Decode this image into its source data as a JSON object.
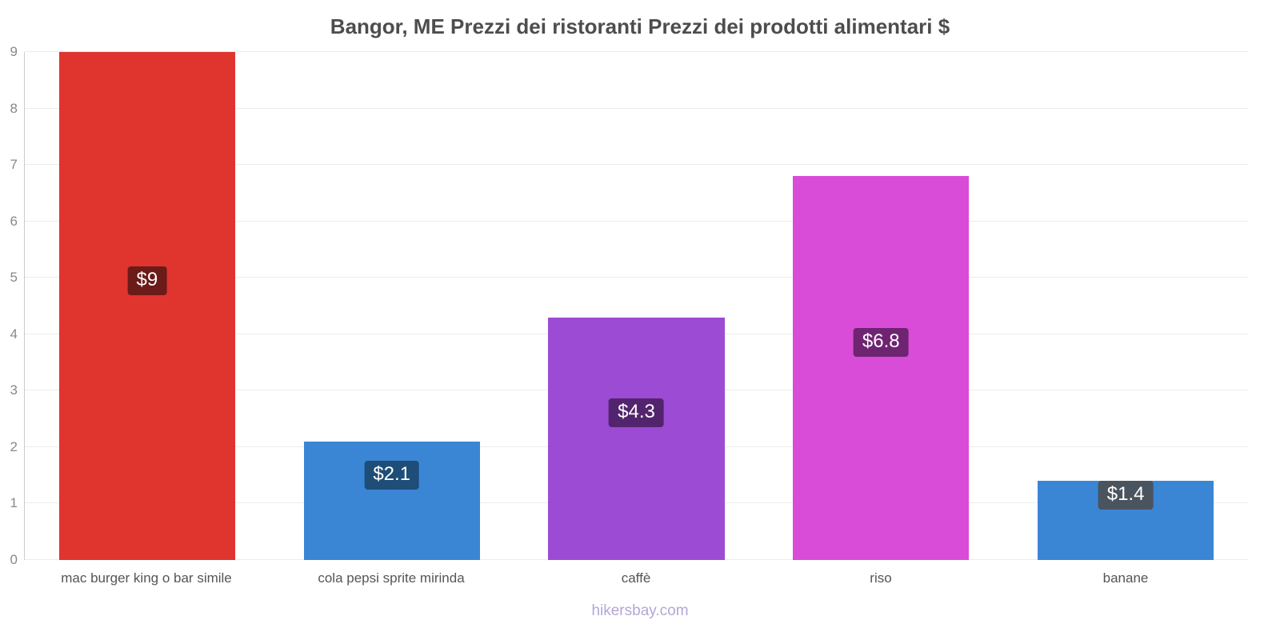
{
  "title": "Bangor, ME Prezzi dei ristoranti Prezzi dei prodotti alimentari $",
  "footer": "hikersbay.com",
  "chart_data": {
    "type": "bar",
    "title": "Bangor, ME Prezzi dei ristoranti Prezzi dei prodotti alimentari $",
    "categories": [
      "mac burger king o bar simile",
      "cola pepsi sprite mirinda",
      "caffè",
      "riso",
      "banane"
    ],
    "values": [
      9,
      2.1,
      4.3,
      6.8,
      1.4
    ],
    "value_labels": [
      "$9",
      "$2.1",
      "$4.3",
      "$6.8",
      "$1.4"
    ],
    "bar_colors": [
      "#e0342f",
      "#3b85d5",
      "#9c4bd4",
      "#d84cd8",
      "#3b85d5"
    ],
    "label_bg_colors": [
      "#6b1b18",
      "#1e4d78",
      "#53246e",
      "#6f2472",
      "#4a545e"
    ],
    "currency": "$",
    "xlabel": "",
    "ylabel": "",
    "ylim": [
      0,
      9
    ],
    "yticks": [
      0,
      1,
      2,
      3,
      4,
      5,
      6,
      7,
      8,
      9
    ],
    "grid": true,
    "legend": false,
    "watermark": "hikersbay.com"
  }
}
